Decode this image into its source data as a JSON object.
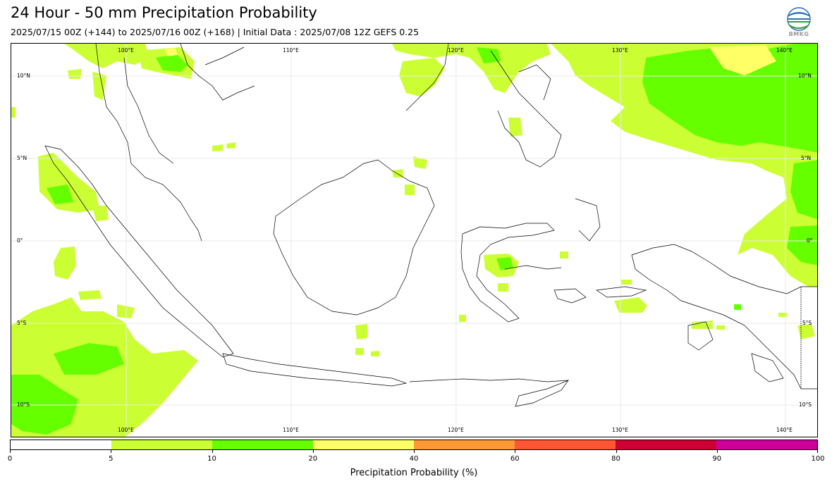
{
  "title": "24 Hour - 50 mm Precipitation Probability",
  "subtitle": "2025/07/15 00Z (+144) to 2025/07/16 00Z (+168) | Initial Data : 2025/07/08 12Z GEFS 0.25",
  "logo_text": "BMKG",
  "map": {
    "lon_range": [
      93,
      142
    ],
    "lat_range": [
      -12,
      12
    ],
    "lon_ticks": [
      "100°E",
      "110°E",
      "120°E",
      "130°E",
      "140°E"
    ],
    "lat_ticks": [
      "10°N",
      "5°N",
      "0°",
      "5°S",
      "10°S"
    ],
    "gridlines": true
  },
  "legend": {
    "label": "Precipitation Probability (%)",
    "ticks": [
      "0",
      "5",
      "10",
      "20",
      "40",
      "60",
      "80",
      "90",
      "100"
    ],
    "classes": [
      {
        "range": "0-5",
        "color": "#ffffff"
      },
      {
        "range": "5-10",
        "color": "#ccff33"
      },
      {
        "range": "10-20",
        "color": "#66ff00"
      },
      {
        "range": "20-40",
        "color": "#ffff66"
      },
      {
        "range": "40-60",
        "color": "#ff9933"
      },
      {
        "range": "60-80",
        "color": "#ff5533"
      },
      {
        "range": "80-90",
        "color": "#cc0033"
      },
      {
        "range": "90-100",
        "color": "#cc0099"
      }
    ]
  }
}
